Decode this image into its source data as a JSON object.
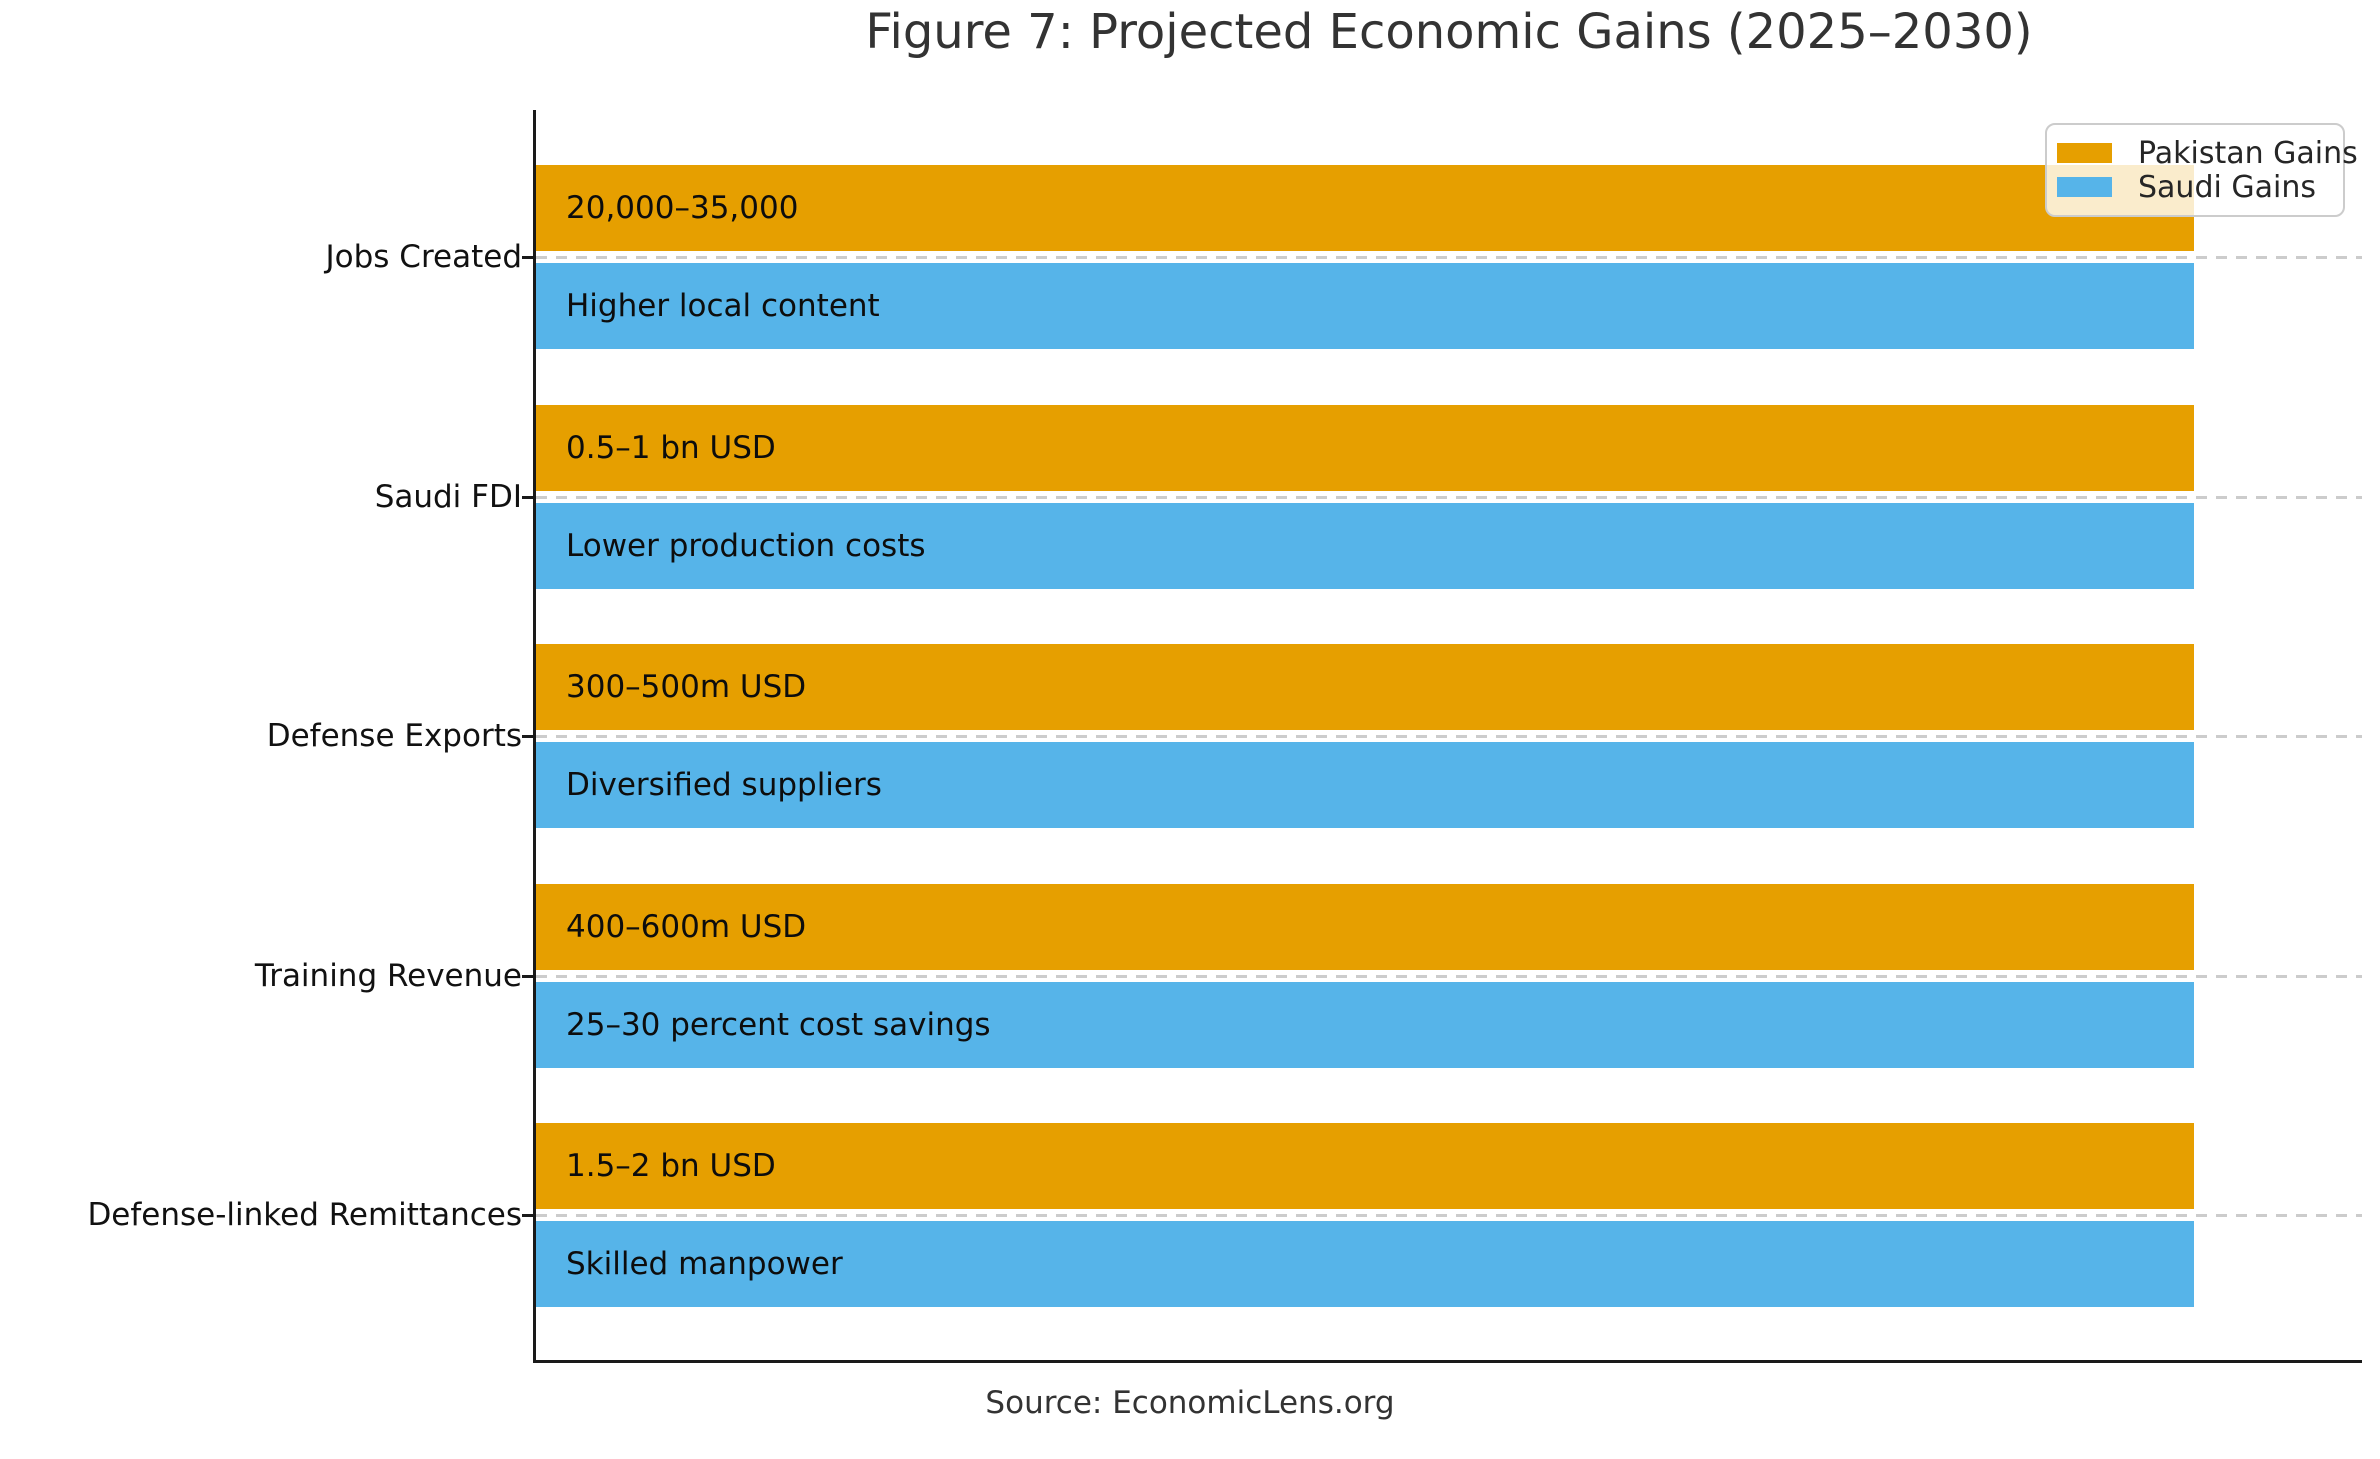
{
  "title": "Figure 7: Projected Economic Gains (2025–2030)",
  "source": "Source: EconomicLens.org",
  "legend": {
    "items": [
      {
        "label": "Pakistan Gains",
        "color": "#E69F00"
      },
      {
        "label": "Saudi Gains",
        "color": "#56B4E9"
      }
    ]
  },
  "chart_data": {
    "type": "bar",
    "orientation": "horizontal",
    "title": "Figure 7: Projected Economic Gains (2025–2030)",
    "xlabel": "",
    "ylabel": "",
    "categories": [
      "Jobs Created",
      "Saudi FDI",
      "Defense Exports",
      "Training Revenue",
      "Defense-linked Remittances"
    ],
    "series": [
      {
        "name": "Pakistan Gains",
        "color": "#E69F00",
        "values": [
          1,
          1,
          1,
          1,
          1
        ],
        "labels": [
          "20,000–35,000",
          "0.5–1 bn USD",
          "300–500m USD",
          "400–600m USD",
          "1.5–2 bn USD"
        ]
      },
      {
        "name": "Saudi Gains",
        "color": "#56B4E9",
        "values": [
          1,
          1,
          1,
          1,
          1
        ],
        "labels": [
          "Higher local content",
          "Lower production costs",
          "Diversified suppliers",
          "25–30 percent cost savings",
          "Skilled manpower"
        ]
      }
    ],
    "value_note": "All bars drawn equal length; qualitative values are written inside the bars",
    "legend_position": "upper right",
    "grid": "horizontal dashed gridlines at each category tick",
    "grid_color": "#cccccc",
    "caption": "Source: EconomicLens.org"
  }
}
